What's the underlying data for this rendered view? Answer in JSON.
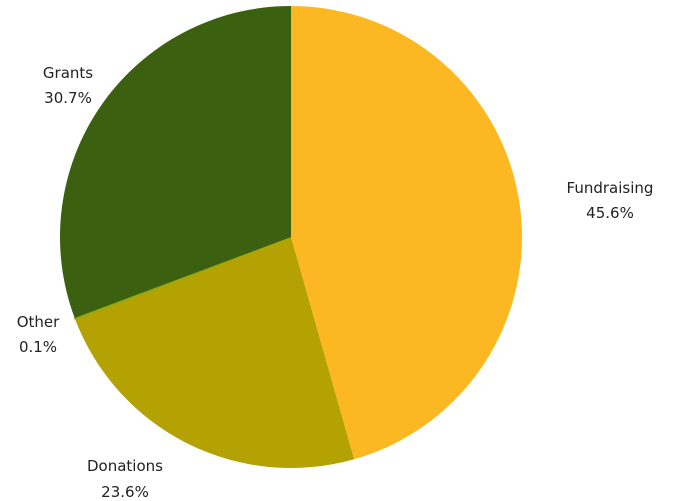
{
  "chart_data": {
    "type": "pie",
    "title": "",
    "slices": [
      {
        "label": "Fundraising",
        "value": 45.6,
        "value_label": "45.6%",
        "color": "#FBB822"
      },
      {
        "label": "Donations",
        "value": 23.6,
        "value_label": "23.6%",
        "color": "#B3A202"
      },
      {
        "label": "Other",
        "value": 0.1,
        "value_label": "0.1%",
        "color": "#8FAA12"
      },
      {
        "label": "Grants",
        "value": 30.7,
        "value_label": "30.7%",
        "color": "#3B6010"
      }
    ],
    "start_angle": "12 o'clock",
    "direction": "clockwise",
    "legend": "none",
    "labels": "outside"
  }
}
